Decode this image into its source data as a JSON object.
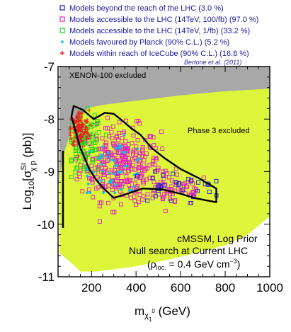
{
  "chart_data": {
    "type": "scatter",
    "x_range": [
      50,
      1000
    ],
    "y_range": [
      -11,
      -7
    ],
    "x_ticks": [
      "200",
      "400",
      "600",
      "800",
      "1000"
    ],
    "y_ticks": [
      "-11",
      "-10",
      "-9",
      "-8",
      "-7"
    ],
    "legend": [
      {
        "label": "Models beyond the reach of the LHC (3.0 %)",
        "marker": "square",
        "color": "#1a1ad0"
      },
      {
        "label": "Models accessible to the LHC (14TeV, 100/fb) (97.0 %)",
        "marker": "square",
        "color": "#e020c0"
      },
      {
        "label": "Models accessible to the LHC (14TeV, 1/fb) (33.2 %)",
        "marker": "square",
        "color": "#20d020"
      },
      {
        "label": "Models favoured by Planck (90% C.L.) (5.2 %)",
        "marker": "dot",
        "color": "#00c8e8"
      },
      {
        "label": "Models within reach of IceCube (90% C.L.) (16.8 %)",
        "marker": "plus",
        "color": "#e82020"
      }
    ],
    "credit": "Bertone et al. (2011)",
    "regions": {
      "xenon_label": "XENON-100 excluded",
      "phase3_label": "Phase 3 excluded",
      "xenon_color": "#a8a8a8",
      "phase3_color": "#ddf53a"
    },
    "info_lines": [
      "cMSSM, Log Prior",
      "Null search at Current LHC"
    ],
    "clusters": [
      {
        "series": 1,
        "count": 320,
        "cx": 330,
        "cy": -8.85,
        "sx": 90,
        "sy": 0.35,
        "xmin": 130,
        "xmax": 760,
        "ymin": -9.95,
        "ymax": -7.75
      },
      {
        "series": 1,
        "count": 70,
        "cx": 560,
        "cy": -9.35,
        "sx": 90,
        "sy": 0.15,
        "xmin": 400,
        "xmax": 760,
        "ymin": -9.7,
        "ymax": -9.0
      },
      {
        "series": 2,
        "count": 90,
        "cx": 170,
        "cy": -8.5,
        "sx": 40,
        "sy": 0.3,
        "xmin": 110,
        "xmax": 300,
        "ymin": -9.1,
        "ymax": -7.8
      },
      {
        "series": 3,
        "count": 55,
        "cx": 300,
        "cy": -8.9,
        "sx": 80,
        "sy": 0.25,
        "xmin": 180,
        "xmax": 520,
        "ymin": -9.4,
        "ymax": -8.3
      },
      {
        "series": 0,
        "count": 30,
        "cx": 580,
        "cy": -9.3,
        "sx": 110,
        "sy": 0.15,
        "xmin": 380,
        "xmax": 760,
        "ymin": -9.6,
        "ymax": -9.0
      },
      {
        "series": 4,
        "count": 130,
        "cx": 145,
        "cy": -8.2,
        "sx": 22,
        "sy": 0.18,
        "xmin": 105,
        "xmax": 210,
        "ymin": -8.7,
        "ymax": -7.75
      }
    ],
    "contour": [
      [
        120,
        -7.75
      ],
      [
        160,
        -7.82
      ],
      [
        210,
        -8.0
      ],
      [
        260,
        -7.88
      ],
      [
        300,
        -7.9
      ],
      [
        330,
        -8.0
      ],
      [
        380,
        -8.18
      ],
      [
        420,
        -8.3
      ],
      [
        470,
        -8.55
      ],
      [
        530,
        -8.75
      ],
      [
        600,
        -8.95
      ],
      [
        680,
        -9.12
      ],
      [
        760,
        -9.32
      ],
      [
        760,
        -9.58
      ],
      [
        720,
        -9.55
      ],
      [
        660,
        -9.5
      ],
      [
        600,
        -9.42
      ],
      [
        520,
        -9.34
      ],
      [
        430,
        -9.32
      ],
      [
        360,
        -9.42
      ],
      [
        300,
        -9.5
      ],
      [
        250,
        -9.3
      ],
      [
        220,
        -9.15
      ],
      [
        190,
        -8.95
      ],
      [
        170,
        -8.75
      ],
      [
        150,
        -8.55
      ],
      [
        130,
        -8.25
      ],
      [
        110,
        -7.95
      ]
    ],
    "contour_color": "#000000"
  }
}
